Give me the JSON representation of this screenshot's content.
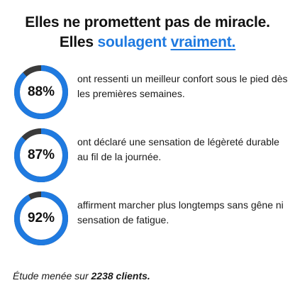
{
  "headline": {
    "line1": "Elles ne promettent pas de miracle.",
    "line2_prefix": "Elles ",
    "line2_accent": "soulagent",
    "line2_space": " ",
    "line2_underlined": "vraiment."
  },
  "colors": {
    "accent": "#1f7ae0",
    "ring_track": "#3a3a3a",
    "text": "#1a1a1a"
  },
  "stats": [
    {
      "percent_label": "88%",
      "value": 0.88,
      "text": "ont ressenti un meilleur confort sous le pied dès les premières semaines."
    },
    {
      "percent_label": "87%",
      "value": 0.87,
      "text": "ont déclaré une sensation de légèreté durable au fil de la journée."
    },
    {
      "percent_label": "92%",
      "value": 0.92,
      "text": "affirment marcher plus longtemps sans gêne ni sensation de fatigue."
    }
  ],
  "footnote": {
    "prefix": "Étude menée sur ",
    "bold": "2238 clients."
  }
}
